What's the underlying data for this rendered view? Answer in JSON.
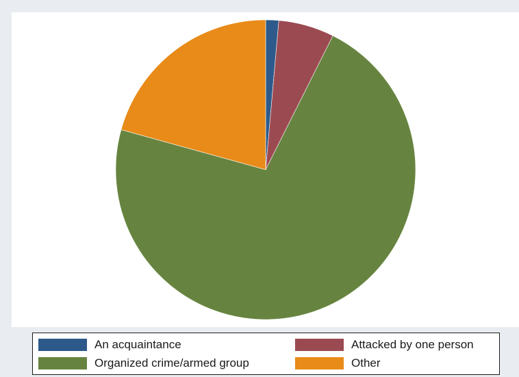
{
  "chart_data": {
    "type": "pie",
    "categories": [
      "An acquaintance",
      "Attacked by one person",
      "Organized crime/armed group",
      "Other"
    ],
    "values": [
      1.4,
      6.0,
      71.9,
      20.7
    ],
    "colors": [
      "#2d5a8a",
      "#9c4a52",
      "#66843f",
      "#e88b19"
    ],
    "start": "12 o'clock, clockwise",
    "legend": {
      "placement": "bottom",
      "columns": 2,
      "entries": [
        {
          "label": "An acquaintance",
          "color": "#2d5a8a"
        },
        {
          "label": "Attacked by one person",
          "color": "#9c4a52"
        },
        {
          "label": "Organized crime/armed group",
          "color": "#66843f"
        },
        {
          "label": "Other",
          "color": "#e88b19"
        }
      ]
    }
  }
}
